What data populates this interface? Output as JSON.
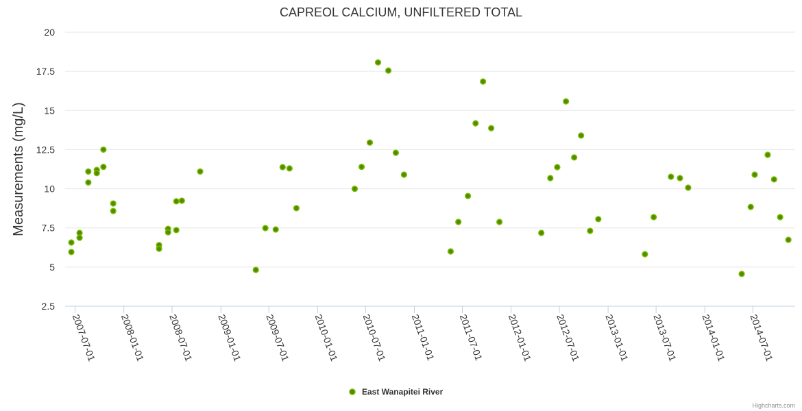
{
  "chart_data": {
    "type": "scatter",
    "title": "CAPREOL CALCIUM, UNFILTERED TOTAL",
    "xlabel": "",
    "ylabel": "Measurements (mg/L)",
    "ylim": [
      2.5,
      20
    ],
    "yticks": [
      "2.5",
      "5",
      "7.5",
      "10",
      "12.5",
      "15",
      "17.5",
      "20"
    ],
    "xlim": [
      "2007-06-08",
      "2014-12-05"
    ],
    "xticks": [
      "2007-07-01",
      "2008-01-01",
      "2008-07-01",
      "2009-01-01",
      "2009-07-01",
      "2010-01-01",
      "2010-07-01",
      "2011-01-01",
      "2011-07-01",
      "2012-01-01",
      "2012-07-01",
      "2013-01-01",
      "2013-07-01",
      "2014-01-01",
      "2014-07-01"
    ],
    "grid": true,
    "legend_position": "bottom-center",
    "series": [
      {
        "name": "East Wanapitei River",
        "color": "#5a9a00",
        "points": [
          [
            "2007-06-17",
            5.96
          ],
          [
            "2007-06-17",
            6.57
          ],
          [
            "2007-07-18",
            7.18
          ],
          [
            "2007-07-18",
            6.87
          ],
          [
            "2007-08-20",
            10.4
          ],
          [
            "2007-08-20",
            11.1
          ],
          [
            "2007-09-21",
            11.2
          ],
          [
            "2007-09-21",
            11.0
          ],
          [
            "2007-10-16",
            12.5
          ],
          [
            "2007-10-16",
            11.4
          ],
          [
            "2007-11-22",
            9.06
          ],
          [
            "2007-11-22",
            8.58
          ],
          [
            "2008-05-13",
            6.4
          ],
          [
            "2008-05-13",
            6.17
          ],
          [
            "2008-06-16",
            7.44
          ],
          [
            "2008-06-16",
            7.22
          ],
          [
            "2008-07-17",
            9.2
          ],
          [
            "2008-07-17",
            7.36
          ],
          [
            "2008-08-07",
            9.24
          ],
          [
            "2008-10-15",
            11.1
          ],
          [
            "2009-05-13",
            4.82
          ],
          [
            "2009-06-18",
            7.49
          ],
          [
            "2009-07-27",
            7.4
          ],
          [
            "2009-08-22",
            11.38
          ],
          [
            "2009-09-17",
            11.3
          ],
          [
            "2009-10-13",
            8.76
          ],
          [
            "2010-05-21",
            10.0
          ],
          [
            "2010-06-16",
            11.4
          ],
          [
            "2010-07-17",
            12.95
          ],
          [
            "2010-08-17",
            18.07
          ],
          [
            "2010-09-25",
            17.55
          ],
          [
            "2010-10-23",
            12.3
          ],
          [
            "2010-11-23",
            10.9
          ],
          [
            "2011-05-18",
            6.0
          ],
          [
            "2011-06-16",
            7.88
          ],
          [
            "2011-07-22",
            9.54
          ],
          [
            "2011-08-20",
            14.18
          ],
          [
            "2011-09-17",
            16.85
          ],
          [
            "2011-10-18",
            13.87
          ],
          [
            "2011-11-18",
            7.88
          ],
          [
            "2012-04-24",
            7.18
          ],
          [
            "2012-05-28",
            10.68
          ],
          [
            "2012-06-23",
            11.38
          ],
          [
            "2012-07-26",
            15.58
          ],
          [
            "2012-08-26",
            12.0
          ],
          [
            "2012-09-21",
            13.4
          ],
          [
            "2012-10-25",
            7.31
          ],
          [
            "2012-11-25",
            8.06
          ],
          [
            "2013-05-20",
            5.82
          ],
          [
            "2013-06-22",
            8.19
          ],
          [
            "2013-08-26",
            10.77
          ],
          [
            "2013-09-29",
            10.68
          ],
          [
            "2013-10-30",
            10.07
          ],
          [
            "2014-05-20",
            4.56
          ],
          [
            "2014-06-23",
            8.84
          ],
          [
            "2014-07-08",
            10.9
          ],
          [
            "2014-08-26",
            12.17
          ],
          [
            "2014-09-19",
            10.6
          ],
          [
            "2014-10-12",
            8.19
          ],
          [
            "2014-11-12",
            6.74
          ]
        ]
      }
    ],
    "credits": "Highcharts.com"
  }
}
